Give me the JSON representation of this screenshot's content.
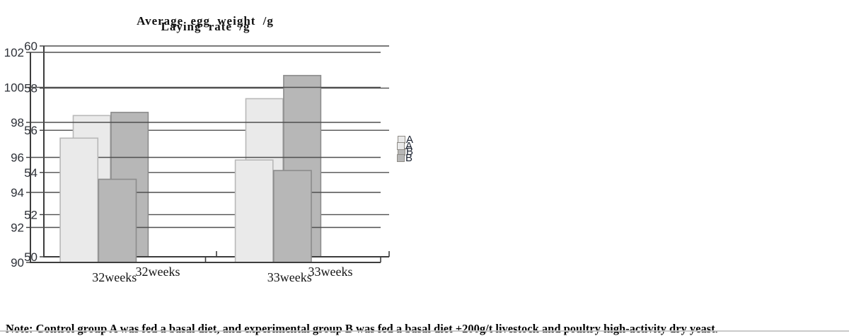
{
  "note": "Note: Control group A was fed a basal diet, and experimental group B was fed a basal diet +200g/t livestock and poultry high-activity dry yeast.",
  "colors": {
    "series_a_fill": "#eaeaea",
    "series_a_border": "#b8b8b8",
    "series_b_fill": "#b7b7b7",
    "series_b_border": "#8c8c8c",
    "gridline": "#4f4f4f",
    "axis": "#3d3d3d",
    "tick_label": "#2e3138",
    "swatch_border": "#8f8c86",
    "divider": "#c9c9c9"
  },
  "chart_data": [
    {
      "type": "bar",
      "title": "Average egg weight /g",
      "categories": [
        "32weeks",
        "33weeks"
      ],
      "series": [
        {
          "name": "A",
          "values": [
            56.7,
            57.5
          ]
        },
        {
          "name": "B",
          "values": [
            56.85,
            58.6
          ]
        }
      ],
      "ylim": [
        50,
        60
      ],
      "ytick_step": 2,
      "grid": true,
      "legend_position": "right"
    },
    {
      "type": "bar",
      "title": "Laying rate /g",
      "categories": [
        "32weeks",
        "33weeks"
      ],
      "series": [
        {
          "name": "A",
          "values": [
            97.1,
            95.85
          ]
        },
        {
          "name": "B",
          "values": [
            94.75,
            95.25
          ]
        }
      ],
      "ylim": [
        90,
        102
      ],
      "ytick_step": 2,
      "grid": true,
      "legend_position": "right"
    }
  ]
}
